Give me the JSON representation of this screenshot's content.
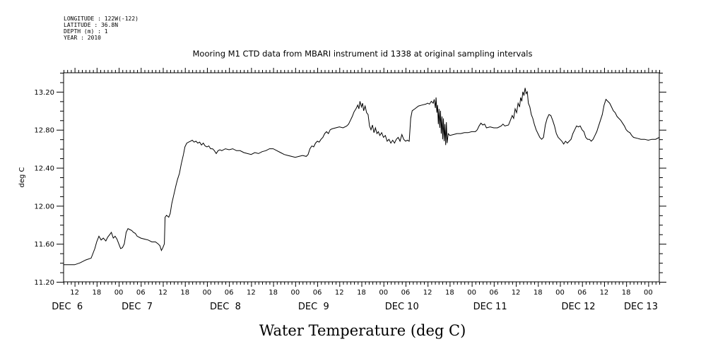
{
  "header": {
    "lines": [
      "LONGITUDE : 122W(-122)",
      "LATITUDE : 36.8N",
      "DEPTH (m) : 1",
      "YEAR : 2010"
    ]
  },
  "chart_data": {
    "type": "line",
    "title": "Mooring M1 CTD data from MBARI instrument id 1338 at original sampling intervals",
    "xlabel": "Water Temperature (deg C)",
    "ylabel": "deg C",
    "x_unit": "hours since DEC 6 00:00",
    "xlim": [
      9,
      171
    ],
    "ylim": [
      11.2,
      13.4
    ],
    "yticks": [
      11.2,
      11.6,
      12.0,
      12.4,
      12.8,
      13.2
    ],
    "ytick_labels": [
      "11.20",
      "11.60",
      "12.00",
      "12.40",
      "12.80",
      "13.20"
    ],
    "hour_ticks": [
      {
        "h": 12,
        "label": "12"
      },
      {
        "h": 18,
        "label": "18"
      },
      {
        "h": 24,
        "label": "00"
      },
      {
        "h": 30,
        "label": "06"
      },
      {
        "h": 36,
        "label": "12"
      },
      {
        "h": 42,
        "label": "18"
      },
      {
        "h": 48,
        "label": "00"
      },
      {
        "h": 54,
        "label": "06"
      },
      {
        "h": 60,
        "label": "12"
      },
      {
        "h": 66,
        "label": "18"
      },
      {
        "h": 72,
        "label": "00"
      },
      {
        "h": 78,
        "label": "06"
      },
      {
        "h": 84,
        "label": "12"
      },
      {
        "h": 90,
        "label": "18"
      },
      {
        "h": 96,
        "label": "00"
      },
      {
        "h": 102,
        "label": "06"
      },
      {
        "h": 108,
        "label": "12"
      },
      {
        "h": 114,
        "label": "18"
      },
      {
        "h": 120,
        "label": "00"
      },
      {
        "h": 126,
        "label": "06"
      },
      {
        "h": 132,
        "label": "12"
      },
      {
        "h": 138,
        "label": "18"
      },
      {
        "h": 144,
        "label": "00"
      },
      {
        "h": 150,
        "label": "06"
      },
      {
        "h": 156,
        "label": "12"
      },
      {
        "h": 162,
        "label": "18"
      },
      {
        "h": 168,
        "label": "00"
      },
      {
        "h": 174,
        "label": "06"
      }
    ],
    "day_labels": [
      {
        "h": 10,
        "label": "DEC  6"
      },
      {
        "h": 29,
        "label": "DEC  7"
      },
      {
        "h": 53,
        "label": "DEC  8"
      },
      {
        "h": 77,
        "label": "DEC  9"
      },
      {
        "h": 101,
        "label": "DEC 10"
      },
      {
        "h": 125,
        "label": "DEC 11"
      },
      {
        "h": 149,
        "label": "DEC 12"
      },
      {
        "h": 166,
        "label": "DEC 13"
      }
    ],
    "series": [
      {
        "points": [
          [
            9,
            11.38
          ],
          [
            12,
            11.38
          ],
          [
            13.5,
            11.4
          ],
          [
            15,
            11.43
          ],
          [
            16.5,
            11.45
          ],
          [
            17.5,
            11.55
          ],
          [
            18,
            11.62
          ],
          [
            18.6,
            11.68
          ],
          [
            19.2,
            11.64
          ],
          [
            19.8,
            11.66
          ],
          [
            20.5,
            11.63
          ],
          [
            21,
            11.67
          ],
          [
            21.6,
            11.7
          ],
          [
            22,
            11.72
          ],
          [
            22.5,
            11.66
          ],
          [
            23,
            11.68
          ],
          [
            23.5,
            11.65
          ],
          [
            24,
            11.6
          ],
          [
            24.5,
            11.55
          ],
          [
            25,
            11.56
          ],
          [
            25.5,
            11.6
          ],
          [
            26,
            11.72
          ],
          [
            26.5,
            11.76
          ],
          [
            27,
            11.75
          ],
          [
            27.5,
            11.74
          ],
          [
            28,
            11.72
          ],
          [
            28.5,
            11.71
          ],
          [
            29,
            11.68
          ],
          [
            30,
            11.66
          ],
          [
            31,
            11.65
          ],
          [
            32,
            11.64
          ],
          [
            33,
            11.62
          ],
          [
            34,
            11.62
          ],
          [
            34.7,
            11.6
          ],
          [
            35.2,
            11.58
          ],
          [
            35.6,
            11.53
          ],
          [
            36,
            11.56
          ],
          [
            36.4,
            11.6
          ],
          [
            36.6,
            11.88
          ],
          [
            37,
            11.9
          ],
          [
            37.6,
            11.88
          ],
          [
            38,
            11.92
          ],
          [
            38.4,
            12.02
          ],
          [
            39,
            12.12
          ],
          [
            39.6,
            12.22
          ],
          [
            40,
            12.28
          ],
          [
            40.5,
            12.34
          ],
          [
            41,
            12.44
          ],
          [
            41.6,
            12.54
          ],
          [
            42,
            12.62
          ],
          [
            42.5,
            12.66
          ],
          [
            43,
            12.67
          ],
          [
            43.5,
            12.68
          ],
          [
            44,
            12.69
          ],
          [
            44.5,
            12.67
          ],
          [
            45,
            12.68
          ],
          [
            45.5,
            12.66
          ],
          [
            46,
            12.67
          ],
          [
            46.5,
            12.64
          ],
          [
            47,
            12.66
          ],
          [
            47.5,
            12.63
          ],
          [
            48,
            12.62
          ],
          [
            48.5,
            12.63
          ],
          [
            49,
            12.6
          ],
          [
            49.5,
            12.6
          ],
          [
            50,
            12.58
          ],
          [
            50.5,
            12.55
          ],
          [
            51,
            12.58
          ],
          [
            51.5,
            12.59
          ],
          [
            52,
            12.58
          ],
          [
            53,
            12.6
          ],
          [
            54,
            12.59
          ],
          [
            55,
            12.6
          ],
          [
            56,
            12.58
          ],
          [
            57,
            12.58
          ],
          [
            58,
            12.56
          ],
          [
            59,
            12.55
          ],
          [
            60,
            12.54
          ],
          [
            61,
            12.56
          ],
          [
            62,
            12.55
          ],
          [
            63,
            12.57
          ],
          [
            64,
            12.58
          ],
          [
            65,
            12.6
          ],
          [
            66,
            12.6
          ],
          [
            67,
            12.58
          ],
          [
            68,
            12.56
          ],
          [
            69,
            12.54
          ],
          [
            70,
            12.53
          ],
          [
            71,
            12.52
          ],
          [
            72,
            12.51
          ],
          [
            73,
            12.52
          ],
          [
            74,
            12.53
          ],
          [
            75,
            12.52
          ],
          [
            75.5,
            12.54
          ],
          [
            76,
            12.6
          ],
          [
            76.5,
            12.63
          ],
          [
            77,
            12.62
          ],
          [
            77.5,
            12.66
          ],
          [
            78,
            12.68
          ],
          [
            78.5,
            12.67
          ],
          [
            79,
            12.7
          ],
          [
            79.5,
            12.72
          ],
          [
            80,
            12.76
          ],
          [
            80.5,
            12.78
          ],
          [
            81,
            12.76
          ],
          [
            81.5,
            12.8
          ],
          [
            82,
            12.81
          ],
          [
            83,
            12.82
          ],
          [
            84,
            12.83
          ],
          [
            85,
            12.82
          ],
          [
            86,
            12.84
          ],
          [
            86.5,
            12.86
          ],
          [
            87,
            12.9
          ],
          [
            87.5,
            12.94
          ],
          [
            88,
            12.99
          ],
          [
            88.5,
            13.02
          ],
          [
            89,
            13.06
          ],
          [
            89.3,
            13.02
          ],
          [
            89.6,
            13.1
          ],
          [
            90,
            13.04
          ],
          [
            90.3,
            13.08
          ],
          [
            90.6,
            13.0
          ],
          [
            91,
            13.05
          ],
          [
            91.4,
            12.98
          ],
          [
            91.8,
            12.96
          ],
          [
            92.2,
            12.84
          ],
          [
            92.6,
            12.8
          ],
          [
            93,
            12.85
          ],
          [
            93.4,
            12.77
          ],
          [
            93.8,
            12.82
          ],
          [
            94.2,
            12.76
          ],
          [
            94.6,
            12.78
          ],
          [
            95,
            12.74
          ],
          [
            95.5,
            12.77
          ],
          [
            96,
            12.72
          ],
          [
            96.5,
            12.74
          ],
          [
            97,
            12.68
          ],
          [
            97.5,
            12.7
          ],
          [
            98,
            12.66
          ],
          [
            98.5,
            12.69
          ],
          [
            99,
            12.66
          ],
          [
            99.5,
            12.7
          ],
          [
            100,
            12.72
          ],
          [
            100.5,
            12.68
          ],
          [
            101,
            12.75
          ],
          [
            101.5,
            12.7
          ],
          [
            102,
            12.68
          ],
          [
            102.5,
            12.69
          ],
          [
            103,
            12.68
          ],
          [
            103.4,
            12.92
          ],
          [
            103.8,
            13.0
          ],
          [
            104.5,
            13.02
          ],
          [
            105.5,
            13.05
          ],
          [
            106.5,
            13.06
          ],
          [
            107.5,
            13.07
          ],
          [
            108,
            13.08
          ],
          [
            108.5,
            13.07
          ],
          [
            109,
            13.1
          ],
          [
            109.5,
            13.08
          ],
          [
            109.8,
            13.12
          ],
          [
            110.1,
            13.03
          ],
          [
            110.3,
            13.14
          ],
          [
            110.5,
            12.98
          ],
          [
            110.7,
            13.06
          ],
          [
            110.9,
            12.86
          ],
          [
            111.1,
            13.02
          ],
          [
            111.3,
            12.82
          ],
          [
            111.5,
            13.0
          ],
          [
            111.7,
            12.76
          ],
          [
            111.9,
            12.94
          ],
          [
            112.1,
            12.7
          ],
          [
            112.3,
            12.92
          ],
          [
            112.5,
            12.68
          ],
          [
            112.7,
            12.86
          ],
          [
            112.9,
            12.64
          ],
          [
            113.1,
            12.88
          ],
          [
            113.3,
            12.66
          ],
          [
            113.6,
            12.76
          ],
          [
            114,
            12.74
          ],
          [
            115,
            12.75
          ],
          [
            116,
            12.76
          ],
          [
            117,
            12.76
          ],
          [
            118,
            12.77
          ],
          [
            119,
            12.77
          ],
          [
            120,
            12.78
          ],
          [
            121,
            12.78
          ],
          [
            121.5,
            12.8
          ],
          [
            122,
            12.84
          ],
          [
            122.5,
            12.87
          ],
          [
            123,
            12.85
          ],
          [
            123.5,
            12.86
          ],
          [
            124,
            12.82
          ],
          [
            125,
            12.83
          ],
          [
            126,
            12.82
          ],
          [
            127,
            12.82
          ],
          [
            128,
            12.84
          ],
          [
            128.5,
            12.86
          ],
          [
            129,
            12.84
          ],
          [
            130,
            12.85
          ],
          [
            130.5,
            12.9
          ],
          [
            131,
            12.95
          ],
          [
            131.4,
            12.92
          ],
          [
            131.8,
            13.02
          ],
          [
            132.2,
            12.98
          ],
          [
            132.6,
            13.08
          ],
          [
            133,
            13.04
          ],
          [
            133.3,
            13.14
          ],
          [
            133.6,
            13.1
          ],
          [
            133.9,
            13.2
          ],
          [
            134.2,
            13.16
          ],
          [
            134.5,
            13.24
          ],
          [
            134.8,
            13.18
          ],
          [
            135.1,
            13.2
          ],
          [
            135.4,
            13.08
          ],
          [
            135.8,
            13.04
          ],
          [
            136.2,
            12.96
          ],
          [
            136.6,
            12.92
          ],
          [
            137,
            12.86
          ],
          [
            137.5,
            12.8
          ],
          [
            138,
            12.76
          ],
          [
            138.5,
            12.72
          ],
          [
            139,
            12.7
          ],
          [
            139.5,
            12.72
          ],
          [
            140,
            12.85
          ],
          [
            140.5,
            12.92
          ],
          [
            141,
            12.96
          ],
          [
            141.5,
            12.95
          ],
          [
            142,
            12.9
          ],
          [
            142.5,
            12.84
          ],
          [
            143,
            12.76
          ],
          [
            143.5,
            12.72
          ],
          [
            144,
            12.7
          ],
          [
            144.5,
            12.68
          ],
          [
            145,
            12.65
          ],
          [
            145.5,
            12.68
          ],
          [
            146,
            12.66
          ],
          [
            146.5,
            12.68
          ],
          [
            147,
            12.7
          ],
          [
            147.5,
            12.76
          ],
          [
            148,
            12.8
          ],
          [
            148.5,
            12.84
          ],
          [
            149,
            12.83
          ],
          [
            149.5,
            12.84
          ],
          [
            150,
            12.8
          ],
          [
            150.5,
            12.78
          ],
          [
            151,
            12.72
          ],
          [
            151.5,
            12.7
          ],
          [
            152,
            12.7
          ],
          [
            152.5,
            12.68
          ],
          [
            153,
            12.7
          ],
          [
            153.5,
            12.74
          ],
          [
            154,
            12.78
          ],
          [
            154.5,
            12.84
          ],
          [
            155,
            12.9
          ],
          [
            155.5,
            12.96
          ],
          [
            156,
            13.06
          ],
          [
            156.5,
            13.12
          ],
          [
            157,
            13.1
          ],
          [
            157.5,
            13.08
          ],
          [
            158,
            13.04
          ],
          [
            158.5,
            13.0
          ],
          [
            159,
            12.98
          ],
          [
            159.5,
            12.94
          ],
          [
            160,
            12.92
          ],
          [
            160.5,
            12.9
          ],
          [
            161,
            12.87
          ],
          [
            161.5,
            12.84
          ],
          [
            162,
            12.8
          ],
          [
            162.5,
            12.78
          ],
          [
            163,
            12.77
          ],
          [
            163.5,
            12.74
          ],
          [
            164,
            12.72
          ],
          [
            165,
            12.71
          ],
          [
            166,
            12.7
          ],
          [
            167,
            12.7
          ],
          [
            168,
            12.69
          ],
          [
            169,
            12.7
          ],
          [
            170,
            12.7
          ],
          [
            171,
            12.72
          ]
        ]
      }
    ]
  }
}
